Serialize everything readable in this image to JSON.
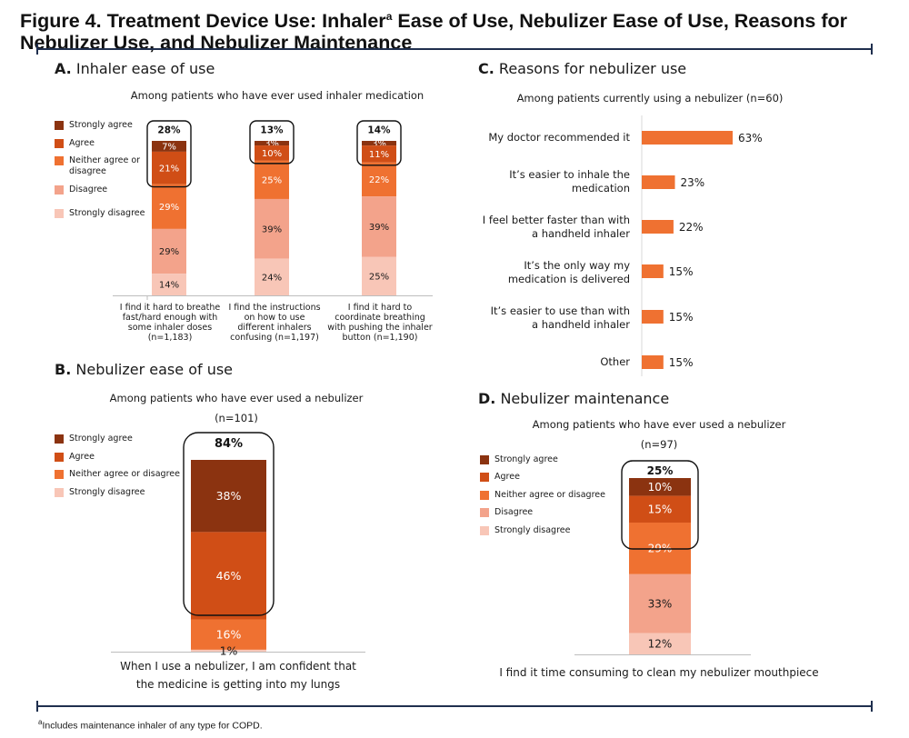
{
  "figure": {
    "title_main": "Figure 4. Treatment Device Use: Inhaler",
    "title_sup": "a",
    "title_rest": " Ease of Use, Nebulizer Ease of Use, Reasons for Nebulizer Use, and Nebulizer Maintenance",
    "footnote_sup": "a",
    "footnote_text": "Includes maintenance inhaler of any type for COPD."
  },
  "colors": {
    "strongly_agree": "#8b3310",
    "agree": "#d04e16",
    "neither": "#ef7131",
    "disagree": "#f3a38b",
    "strongly_disagree": "#f8c6b7",
    "bar_c": "#ef7131",
    "rule": "#1f2f4e"
  },
  "chart_data": [
    {
      "panel_letter": "A.",
      "panel_name": "Inhaler ease of use",
      "type": "bar",
      "stacked": true,
      "subtitle": "Among patients who have ever used inhaler medication",
      "legend": [
        "Strongly agree",
        "Agree",
        "Neither agree or disagree",
        "Disagree",
        "Strongly disagree"
      ],
      "categories": [
        "I find it hard to breathe fast/hard enough with some inhaler doses (n=1,183)",
        "I find the instructions on how to use different inhalers confusing (n=1,197)",
        "I find it hard to coordinate breathing with pushing the inhaler button (n=1,190)"
      ],
      "series": [
        {
          "name": "Strongly agree",
          "values": [
            7,
            3,
            3
          ]
        },
        {
          "name": "Agree",
          "values": [
            21,
            10,
            11
          ]
        },
        {
          "name": "Neither agree or disagree",
          "values": [
            29,
            25,
            22
          ]
        },
        {
          "name": "Disagree",
          "values": [
            29,
            39,
            39
          ]
        },
        {
          "name": "Strongly disagree",
          "values": [
            14,
            24,
            25
          ]
        }
      ],
      "value_labels": [
        [
          "7%",
          "21%",
          "29%",
          "29%",
          "14%"
        ],
        [
          "3%",
          "10%",
          "25%",
          "39%",
          "24%"
        ],
        [
          "3%",
          "11%",
          "22%",
          "39%",
          "25%"
        ]
      ],
      "highlight_totals": [
        "28%",
        "13%",
        "14%"
      ]
    },
    {
      "panel_letter": "B.",
      "panel_name": "Nebulizer ease of use",
      "type": "bar",
      "stacked": true,
      "subtitle": "Among patients who have ever used a nebulizer",
      "n": "(n=101)",
      "legend": [
        "Strongly agree",
        "Agree",
        "Neither agree or disagree",
        "Strongly disagree"
      ],
      "categories": [
        "When I use a nebulizer, I am confident that the medicine is getting into my lungs"
      ],
      "series": [
        {
          "name": "Strongly agree",
          "values": [
            38
          ]
        },
        {
          "name": "Agree",
          "values": [
            46
          ]
        },
        {
          "name": "Neither agree or disagree",
          "values": [
            16
          ]
        },
        {
          "name": "Strongly disagree",
          "values": [
            1
          ]
        }
      ],
      "value_labels": [
        "38%",
        "46%",
        "16%",
        "1%"
      ],
      "highlight_total": "84%"
    },
    {
      "panel_letter": "C.",
      "panel_name": "Reasons for nebulizer use",
      "type": "bar",
      "orientation": "horizontal",
      "subtitle": "Among patients currently using a nebulizer (n=60)",
      "categories": [
        "My doctor recommended it",
        "It’s easier to inhale the medication",
        "I feel better faster than with a handheld inhaler",
        "It’s the only way my medication is delivered",
        "It’s easier to use than with a handheld inhaler",
        "Other"
      ],
      "values": [
        63,
        23,
        22,
        15,
        15,
        15
      ],
      "value_labels": [
        "63%",
        "23%",
        "22%",
        "15%",
        "15%",
        "15%"
      ]
    },
    {
      "panel_letter": "D.",
      "panel_name": "Nebulizer maintenance",
      "type": "bar",
      "stacked": true,
      "subtitle": "Among patients who have ever used a nebulizer",
      "n": "(n=97)",
      "legend": [
        "Strongly agree",
        "Agree",
        "Neither agree or disagree",
        "Disagree",
        "Strongly disagree"
      ],
      "categories": [
        "I find it time consuming to clean my nebulizer mouthpiece"
      ],
      "series": [
        {
          "name": "Strongly agree",
          "values": [
            10
          ]
        },
        {
          "name": "Agree",
          "values": [
            15
          ]
        },
        {
          "name": "Neither agree or disagree",
          "values": [
            29
          ]
        },
        {
          "name": "Disagree",
          "values": [
            33
          ]
        },
        {
          "name": "Strongly disagree",
          "values": [
            12
          ]
        }
      ],
      "value_labels": [
        "10%",
        "15%",
        "29%",
        "33%",
        "12%"
      ],
      "highlight_total": "25%"
    }
  ]
}
